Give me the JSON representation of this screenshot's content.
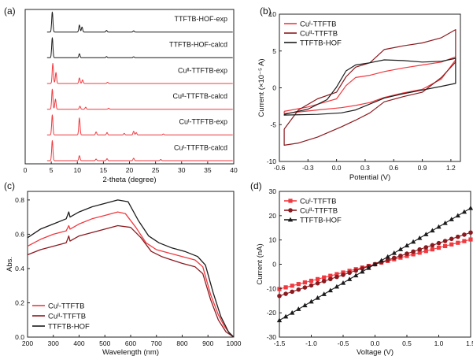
{
  "colors": {
    "cu1": "#f0393f",
    "cu2": "#8b1a1f",
    "hof": "#1b1b1b",
    "axis": "#222222"
  },
  "chart_data": [
    {
      "panel": "(a)",
      "type": "line",
      "xlabel": "2-theta (degree)",
      "ylabel": "",
      "xlim": [
        0,
        40
      ],
      "xticks": [
        0,
        5,
        10,
        15,
        20,
        25,
        30,
        35,
        40
      ],
      "series": [
        {
          "name": "TTFTB-HOF-exp",
          "color_key": "hof",
          "peaks": [
            [
              5.2,
              1.0
            ],
            [
              10.4,
              0.35
            ],
            [
              10.9,
              0.25
            ],
            [
              15.6,
              0.08
            ],
            [
              20.8,
              0.06
            ]
          ]
        },
        {
          "name": "TTFTB-HOF-calcd",
          "color_key": "hof",
          "peaks": [
            [
              5.2,
              1.0
            ],
            [
              10.4,
              0.2
            ],
            [
              15.6,
              0.06
            ],
            [
              20.8,
              0.05
            ]
          ]
        },
        {
          "name": "Cuᴵᴵ-TTFTB-exp",
          "color_key": "cu1",
          "peaks": [
            [
              5.3,
              1.0
            ],
            [
              5.9,
              0.55
            ],
            [
              10.4,
              0.28
            ],
            [
              11.0,
              0.18
            ],
            [
              15.8,
              0.06
            ]
          ]
        },
        {
          "name": "Cuᴵᴵ-TTFTB-calcd",
          "color_key": "cu1",
          "peaks": [
            [
              5.2,
              1.0
            ],
            [
              5.8,
              0.5
            ],
            [
              10.5,
              0.15
            ],
            [
              11.6,
              0.1
            ],
            [
              16.0,
              0.05
            ]
          ]
        },
        {
          "name": "Cuᴵ-TTFTB-exp",
          "color_key": "cu1",
          "peaks": [
            [
              5.2,
              1.0
            ],
            [
              10.4,
              0.85
            ],
            [
              13.6,
              0.15
            ],
            [
              15.7,
              0.12
            ],
            [
              19.0,
              0.08
            ],
            [
              20.8,
              0.18
            ],
            [
              21.3,
              0.12
            ],
            [
              26.5,
              0.05
            ]
          ]
        },
        {
          "name": "Cuᴵ-TTFTB-calcd",
          "color_key": "cu1",
          "peaks": [
            [
              5.2,
              1.0
            ],
            [
              10.4,
              0.25
            ],
            [
              13.6,
              0.08
            ],
            [
              15.7,
              0.1
            ],
            [
              20.8,
              0.12
            ],
            [
              26.0,
              0.06
            ]
          ]
        }
      ]
    },
    {
      "panel": "(b)",
      "type": "line",
      "xlabel": "Potential (V)",
      "ylabel": "Current (×10⁻⁵ A)",
      "xlim": [
        -0.6,
        1.3
      ],
      "ylim": [
        -10,
        10
      ],
      "xticks": [
        -0.6,
        -0.3,
        0.0,
        0.3,
        0.6,
        0.9,
        1.2
      ],
      "yticks": [
        -10,
        -5,
        0,
        5,
        10
      ],
      "legend": "top-left",
      "series": [
        {
          "name": "Cuᴵ-TTFTB",
          "color_key": "cu1",
          "upper": [
            [
              -0.55,
              -3.2
            ],
            [
              -0.3,
              -2.6
            ],
            [
              0.0,
              -1.5
            ],
            [
              0.1,
              0.3
            ],
            [
              0.2,
              1.4
            ],
            [
              0.35,
              1.7
            ],
            [
              0.5,
              2.2
            ],
            [
              0.7,
              2.7
            ],
            [
              0.9,
              3.1
            ],
            [
              1.1,
              3.5
            ],
            [
              1.25,
              4.2
            ]
          ],
          "lower": [
            [
              1.25,
              3.8
            ],
            [
              1.1,
              1.2
            ],
            [
              0.9,
              -0.2
            ],
            [
              0.7,
              -0.7
            ],
            [
              0.5,
              -1.3
            ],
            [
              0.35,
              -2.0
            ],
            [
              0.2,
              -2.4
            ],
            [
              0.05,
              -2.7
            ],
            [
              -0.2,
              -3.0
            ],
            [
              -0.55,
              -3.5
            ]
          ]
        },
        {
          "name": "Cuᴵᴵ-TTFTB",
          "color_key": "cu2",
          "upper": [
            [
              -0.55,
              -5.6
            ],
            [
              -0.4,
              -3.0
            ],
            [
              -0.2,
              -1.5
            ],
            [
              0.0,
              -0.6
            ],
            [
              0.1,
              1.5
            ],
            [
              0.2,
              2.8
            ],
            [
              0.35,
              3.4
            ],
            [
              0.5,
              5.2
            ],
            [
              0.7,
              5.7
            ],
            [
              0.9,
              6.1
            ],
            [
              1.1,
              6.8
            ],
            [
              1.25,
              7.9
            ]
          ],
          "lower": [
            [
              1.25,
              3.5
            ],
            [
              1.1,
              1.4
            ],
            [
              0.9,
              -0.6
            ],
            [
              0.7,
              -1.2
            ],
            [
              0.5,
              -1.9
            ],
            [
              0.35,
              -3.4
            ],
            [
              0.2,
              -4.4
            ],
            [
              0.05,
              -5.3
            ],
            [
              -0.2,
              -6.7
            ],
            [
              -0.4,
              -7.5
            ],
            [
              -0.55,
              -7.8
            ]
          ]
        },
        {
          "name": "TTFTB-HOF",
          "color_key": "hof",
          "upper": [
            [
              -0.55,
              -3.6
            ],
            [
              -0.3,
              -2.9
            ],
            [
              -0.1,
              -1.6
            ],
            [
              0.0,
              0.1
            ],
            [
              0.1,
              2.3
            ],
            [
              0.2,
              3.1
            ],
            [
              0.35,
              3.4
            ],
            [
              0.5,
              3.8
            ],
            [
              0.7,
              3.7
            ],
            [
              0.9,
              3.5
            ],
            [
              1.1,
              3.6
            ],
            [
              1.25,
              4.0
            ]
          ],
          "lower": [
            [
              1.25,
              0.6
            ],
            [
              1.1,
              0.2
            ],
            [
              0.9,
              -0.3
            ],
            [
              0.7,
              -0.8
            ],
            [
              0.5,
              -1.4
            ],
            [
              0.35,
              -2.2
            ],
            [
              0.2,
              -3.0
            ],
            [
              0.05,
              -3.4
            ],
            [
              -0.2,
              -3.6
            ],
            [
              -0.55,
              -3.7
            ]
          ]
        }
      ]
    },
    {
      "panel": "(c)",
      "type": "line",
      "xlabel": "Wavelength (nm)",
      "ylabel": "Abs.",
      "xlim": [
        200,
        1000
      ],
      "ylim": [
        0.0,
        0.85
      ],
      "xticks": [
        200,
        300,
        400,
        500,
        600,
        700,
        800,
        900,
        1000
      ],
      "yticks": [
        0.0,
        0.2,
        0.4,
        0.6,
        0.8
      ],
      "legend": "bottom-left",
      "series": [
        {
          "name": "Cuᴵ-TTFTB",
          "color_key": "cu1",
          "points": [
            [
              200,
              0.53
            ],
            [
              250,
              0.57
            ],
            [
              300,
              0.6
            ],
            [
              350,
              0.62
            ],
            [
              360,
              0.65
            ],
            [
              365,
              0.63
            ],
            [
              400,
              0.66
            ],
            [
              450,
              0.69
            ],
            [
              500,
              0.71
            ],
            [
              550,
              0.73
            ],
            [
              580,
              0.72
            ],
            [
              620,
              0.64
            ],
            [
              660,
              0.55
            ],
            [
              700,
              0.51
            ],
            [
              750,
              0.49
            ],
            [
              800,
              0.47
            ],
            [
              850,
              0.45
            ],
            [
              880,
              0.41
            ],
            [
              910,
              0.25
            ],
            [
              940,
              0.13
            ],
            [
              965,
              0.06
            ],
            [
              985,
              0.02
            ],
            [
              1000,
              0.0
            ]
          ]
        },
        {
          "name": "Cuᴵᴵ-TTFTB",
          "color_key": "cu2",
          "points": [
            [
              200,
              0.48
            ],
            [
              250,
              0.51
            ],
            [
              300,
              0.53
            ],
            [
              350,
              0.55
            ],
            [
              360,
              0.59
            ],
            [
              365,
              0.56
            ],
            [
              400,
              0.59
            ],
            [
              450,
              0.61
            ],
            [
              500,
              0.63
            ],
            [
              550,
              0.65
            ],
            [
              600,
              0.64
            ],
            [
              640,
              0.58
            ],
            [
              680,
              0.5
            ],
            [
              720,
              0.47
            ],
            [
              760,
              0.45
            ],
            [
              800,
              0.43
            ],
            [
              850,
              0.41
            ],
            [
              880,
              0.37
            ],
            [
              910,
              0.22
            ],
            [
              940,
              0.1
            ],
            [
              970,
              0.03
            ],
            [
              1000,
              0.0
            ]
          ]
        },
        {
          "name": "TTFTB-HOF",
          "color_key": "hof",
          "points": [
            [
              200,
              0.58
            ],
            [
              250,
              0.63
            ],
            [
              300,
              0.66
            ],
            [
              350,
              0.69
            ],
            [
              360,
              0.73
            ],
            [
              365,
              0.7
            ],
            [
              400,
              0.73
            ],
            [
              450,
              0.76
            ],
            [
              500,
              0.78
            ],
            [
              550,
              0.8
            ],
            [
              590,
              0.79
            ],
            [
              630,
              0.68
            ],
            [
              670,
              0.59
            ],
            [
              710,
              0.55
            ],
            [
              760,
              0.52
            ],
            [
              810,
              0.5
            ],
            [
              860,
              0.47
            ],
            [
              890,
              0.42
            ],
            [
              920,
              0.26
            ],
            [
              950,
              0.12
            ],
            [
              980,
              0.03
            ],
            [
              1000,
              0.0
            ]
          ]
        }
      ]
    },
    {
      "panel": "(d)",
      "type": "line",
      "xlabel": "Voltage (V)",
      "ylabel": "Current (nA)",
      "xlim": [
        -1.5,
        1.5
      ],
      "ylim": [
        -30,
        30
      ],
      "xticks": [
        -1.5,
        -1.0,
        -0.5,
        0.0,
        0.5,
        1.0,
        1.5
      ],
      "yticks": [
        -30,
        -20,
        -10,
        0,
        10,
        20,
        30
      ],
      "legend": "top-left",
      "series": [
        {
          "name": "Cuᴵ-TTFTB",
          "color_key": "cu1",
          "marker": "square",
          "slope": 6.8
        },
        {
          "name": "Cuᴵᴵ-TTFTB",
          "color_key": "cu2",
          "marker": "circle",
          "slope": 8.7
        },
        {
          "name": "TTFTB-HOF",
          "color_key": "hof",
          "marker": "triangle",
          "slope": 15.4
        }
      ]
    }
  ]
}
